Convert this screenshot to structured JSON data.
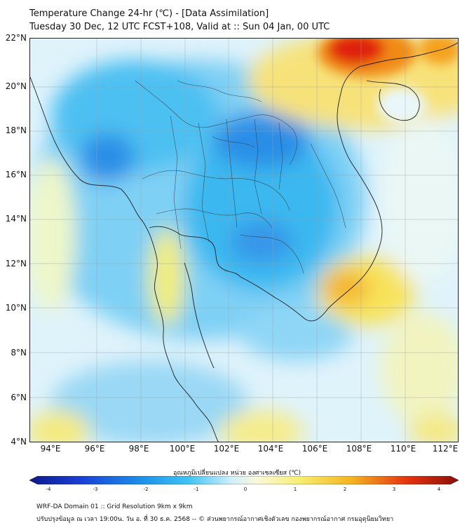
{
  "header": {
    "title_line1": "Temperature Change 24-hr (℃) - [Data Assimilation]",
    "title_line2": "Tuesday 30 Dec, 12 UTC FCST+108, Valid at :: Sun 04 Jan, 00 UTC"
  },
  "map": {
    "lat_labels": [
      "22°N",
      "20°N",
      "18°N",
      "16°N",
      "14°N",
      "12°N",
      "10°N",
      "8°N",
      "6°N",
      "4°N"
    ],
    "lon_labels": [
      "94°E",
      "96°E",
      "98°E",
      "100°E",
      "102°E",
      "104°E",
      "106°E",
      "108°E",
      "110°E",
      "112°E"
    ],
    "colors": {
      "cold_strong": "#1a6fe0",
      "cold": "#2fb4f0",
      "cool": "#9fdcf8",
      "neutral": "#e8f6fb",
      "warm": "#f7f08a",
      "hot": "#f5b21a",
      "very_hot": "#e52310"
    }
  },
  "colorbar": {
    "label": "อุณหภูมิเปลี่ยนแปลง หน่วย องศาเซลเซียส (℃)",
    "ticks": [
      "-4",
      "-3",
      "-2",
      "-1",
      "0",
      "1",
      "2",
      "3",
      "4"
    ],
    "range": [
      -4,
      4
    ]
  },
  "footer": {
    "line1": "WRF-DA Domain 01 :: Grid Resolution 9km x 9km",
    "line2": "ปรับปรุงข้อมูล ณ เวลา 19:00น. วัน อ. ที่ 30 ธ.ค. 2568 -- © ส่วนพยากรณ์อากาศเชิงตัวเลข กองพยากรณ์อากาศ กรมอุตุนิยมวิทยา"
  }
}
